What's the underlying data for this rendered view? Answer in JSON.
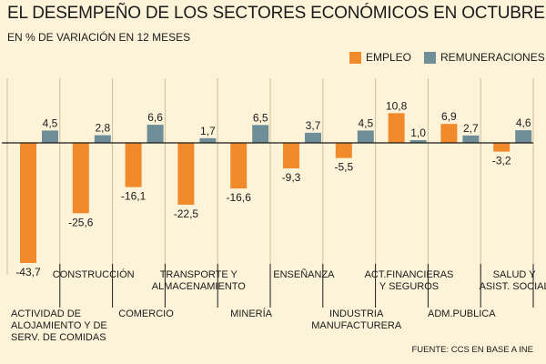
{
  "title": "EL DESEMPEÑO DE LOS SECTORES ECONÓMICOS EN OCTUBRE",
  "subtitle": "EN % DE VARIACIÓN EN 12 MESES",
  "legend": {
    "empleo": "EMPLEO",
    "remuneraciones": "REMUNERACIONES"
  },
  "colors": {
    "empleo": "#f08a2a",
    "remuneraciones": "#6e8e98",
    "background": "#fdf3d9"
  },
  "source": "FUENTE: CCS EN BASE A INE",
  "chart_data": {
    "type": "bar",
    "title": "EL DESEMPEÑO DE LOS SECTORES ECONÓMICOS EN OCTUBRE",
    "ylabel": "% de variación en 12 meses",
    "ylim": [
      -45,
      12
    ],
    "categories": [
      [
        "ACTIVIDAD DE",
        "ALOJAMIENTO Y DE",
        "SERV. DE COMIDAS"
      ],
      [
        "CONSTRUCCIÓN"
      ],
      [
        "COMERCIO"
      ],
      [
        "TRANSPORTE Y",
        "ALMACENAMIENTO"
      ],
      [
        "MINERÍA"
      ],
      [
        "ENSEÑANZA"
      ],
      [
        "INDUSTRIA",
        "MANUFACTURERA"
      ],
      [
        "ACT.FINANCIERAS",
        "Y SEGUROS"
      ],
      [
        "ADM.PUBLICA"
      ],
      [
        "SALUD Y",
        "ASIST. SOCIAL"
      ]
    ],
    "series": [
      {
        "name": "EMPLEO",
        "values": [
          -43.7,
          -25.6,
          -16.1,
          -22.5,
          -16.6,
          -9.3,
          -5.5,
          10.8,
          6.9,
          -3.2
        ],
        "labels": [
          "-43,7",
          "-25,6",
          "-16,1",
          "-22,5",
          "-16,6",
          "-9,3",
          "-5,5",
          "10,8",
          "6,9",
          "-3,2"
        ]
      },
      {
        "name": "REMUNERACIONES",
        "values": [
          4.5,
          2.8,
          6.6,
          1.7,
          6.5,
          3.7,
          4.5,
          1.0,
          2.7,
          4.6
        ],
        "labels": [
          "4,5",
          "2,8",
          "6,6",
          "1,7",
          "6,5",
          "3,7",
          "4,5",
          "1,0",
          "2,7",
          "4,6"
        ]
      }
    ]
  }
}
